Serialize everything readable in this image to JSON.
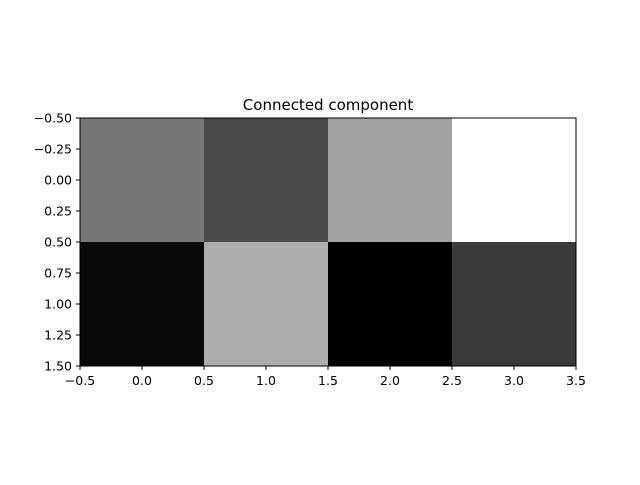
{
  "chart_data": {
    "type": "heatmap",
    "title": "Connected component",
    "xlabel": "",
    "ylabel": "",
    "colormap": "gray",
    "xlim": [
      -0.5,
      3.5
    ],
    "ylim": [
      1.5,
      -0.5
    ],
    "x_ticks": [
      "−0.5",
      "0.0",
      "0.5",
      "1.0",
      "1.5",
      "2.0",
      "2.5",
      "3.0",
      "3.5"
    ],
    "y_ticks": [
      "−0.50",
      "−0.25",
      "0.00",
      "0.25",
      "0.50",
      "0.75",
      "1.00",
      "1.25",
      "1.50"
    ],
    "grid": false,
    "cells": [
      [
        "#767676",
        "#494949",
        "#a2a2a2",
        "#ffffff"
      ],
      [
        "#080808",
        "#adadad",
        "#000000",
        "#393939"
      ]
    ]
  }
}
